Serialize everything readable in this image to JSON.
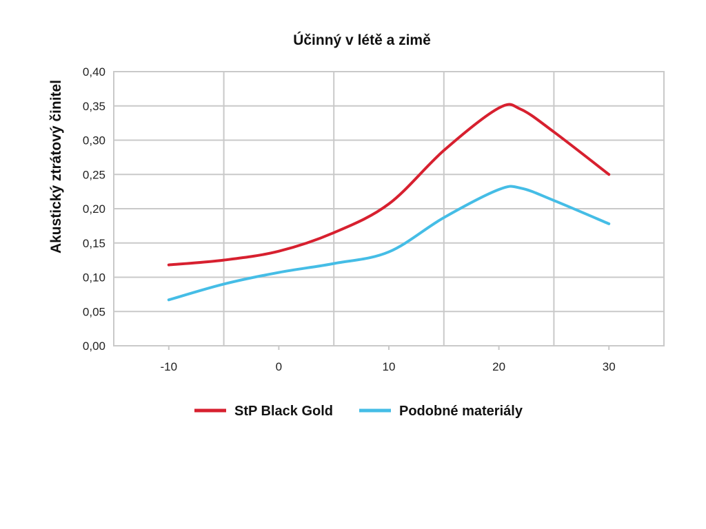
{
  "chart_data": {
    "type": "line",
    "title": "Účinný v létě a zimě",
    "xlabel": "",
    "ylabel": "Akustický ztrátový činitel",
    "xlim": [
      -15,
      35
    ],
    "ylim": [
      0,
      0.4
    ],
    "x_ticks": [
      -10,
      0,
      10,
      20,
      30
    ],
    "x_tick_labels": [
      "-10",
      "0",
      "10",
      "20",
      "30"
    ],
    "y_ticks": [
      0,
      0.05,
      0.1,
      0.15,
      0.2,
      0.25,
      0.3,
      0.35,
      0.4
    ],
    "y_tick_labels": [
      "0,00",
      "0,05",
      "0,10",
      "0,15",
      "0,20",
      "0,25",
      "0,30",
      "0,35",
      "0,40"
    ],
    "grid_x": [
      -15,
      -5,
      5,
      15,
      25,
      35
    ],
    "grid": true,
    "legend_position": "bottom",
    "series": [
      {
        "name": "StP Black Gold",
        "color": "#d7202f",
        "x": [
          -10,
          -5,
          0,
          5,
          10,
          15,
          20,
          22,
          25,
          30
        ],
        "y": [
          0.118,
          0.125,
          0.138,
          0.165,
          0.207,
          0.285,
          0.347,
          0.345,
          0.312,
          0.25
        ]
      },
      {
        "name": "Podobné materiály",
        "color": "#45bde6",
        "x": [
          -10,
          -5,
          0,
          5,
          10,
          15,
          20,
          22,
          25,
          30
        ],
        "y": [
          0.067,
          0.09,
          0.107,
          0.12,
          0.137,
          0.187,
          0.228,
          0.23,
          0.212,
          0.178
        ]
      }
    ]
  }
}
